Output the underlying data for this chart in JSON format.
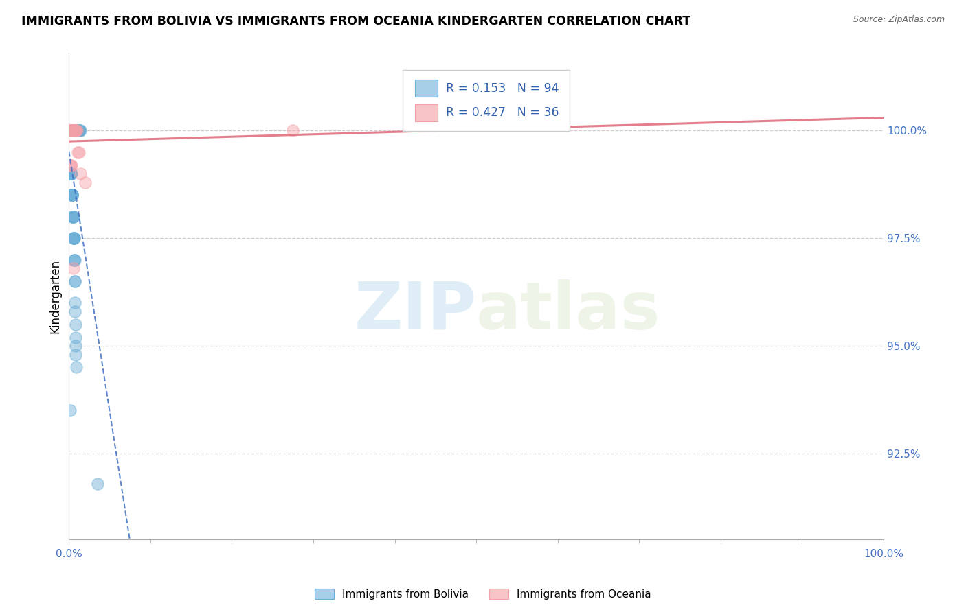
{
  "title": "IMMIGRANTS FROM BOLIVIA VS IMMIGRANTS FROM OCEANIA KINDERGARTEN CORRELATION CHART",
  "source": "Source: ZipAtlas.com",
  "ylabel": "Kindergarten",
  "ylabel_ticks": [
    "92.5%",
    "95.0%",
    "97.5%",
    "100.0%"
  ],
  "ylabel_values": [
    92.5,
    95.0,
    97.5,
    100.0
  ],
  "xlim": [
    0.0,
    100.0
  ],
  "ylim": [
    90.5,
    101.8
  ],
  "legend_label1": "Immigrants from Bolivia",
  "legend_label2": "Immigrants from Oceania",
  "bolivia_color": "#6baed6",
  "oceania_color": "#f4a0a8",
  "bolivia_color_light": "#a8cfe8",
  "oceania_color_light": "#f9c4c8",
  "watermark_zip": "ZIP",
  "watermark_atlas": "atlas",
  "bolivia_x": [
    0.05,
    0.08,
    0.1,
    0.1,
    0.12,
    0.13,
    0.15,
    0.15,
    0.18,
    0.2,
    0.22,
    0.25,
    0.28,
    0.3,
    0.32,
    0.35,
    0.38,
    0.4,
    0.42,
    0.45,
    0.48,
    0.5,
    0.52,
    0.55,
    0.58,
    0.6,
    0.62,
    0.65,
    0.68,
    0.7,
    0.72,
    0.75,
    0.78,
    0.8,
    0.82,
    0.85,
    0.88,
    0.9,
    0.92,
    0.95,
    0.98,
    1.0,
    1.05,
    1.1,
    1.15,
    1.2,
    1.25,
    1.3,
    1.35,
    1.4,
    0.05,
    0.07,
    0.09,
    0.11,
    0.13,
    0.15,
    0.17,
    0.19,
    0.21,
    0.23,
    0.25,
    0.27,
    0.29,
    0.31,
    0.33,
    0.35,
    0.37,
    0.39,
    0.41,
    0.43,
    0.45,
    0.47,
    0.49,
    0.51,
    0.53,
    0.55,
    0.57,
    0.59,
    0.61,
    0.63,
    0.65,
    0.67,
    0.69,
    0.71,
    0.73,
    0.75,
    0.77,
    0.79,
    0.81,
    0.83,
    0.85,
    0.87,
    3.5,
    0.1
  ],
  "bolivia_y": [
    100.0,
    100.0,
    100.0,
    100.0,
    100.0,
    100.0,
    100.0,
    100.0,
    100.0,
    100.0,
    100.0,
    100.0,
    100.0,
    100.0,
    100.0,
    100.0,
    100.0,
    100.0,
    100.0,
    100.0,
    100.0,
    100.0,
    100.0,
    100.0,
    100.0,
    100.0,
    100.0,
    100.0,
    100.0,
    100.0,
    100.0,
    100.0,
    100.0,
    100.0,
    100.0,
    100.0,
    100.0,
    100.0,
    100.0,
    100.0,
    100.0,
    100.0,
    100.0,
    100.0,
    100.0,
    100.0,
    100.0,
    100.0,
    100.0,
    100.0,
    99.0,
    99.0,
    99.0,
    99.0,
    99.0,
    99.0,
    99.0,
    99.0,
    99.0,
    99.0,
    99.0,
    99.0,
    98.5,
    98.5,
    98.5,
    98.5,
    98.5,
    98.5,
    98.5,
    98.5,
    98.0,
    98.0,
    98.0,
    98.0,
    98.0,
    97.5,
    97.5,
    97.5,
    97.5,
    97.5,
    97.0,
    97.0,
    97.0,
    96.5,
    96.5,
    96.0,
    95.8,
    95.5,
    95.2,
    95.0,
    94.8,
    94.5,
    91.8,
    93.5
  ],
  "oceania_x": [
    0.05,
    0.08,
    0.1,
    0.13,
    0.15,
    0.18,
    0.2,
    0.23,
    0.25,
    0.28,
    0.3,
    0.33,
    0.35,
    0.38,
    0.4,
    0.43,
    0.45,
    0.48,
    0.5,
    0.55,
    0.6,
    0.65,
    0.7,
    0.75,
    0.8,
    0.9,
    1.0,
    1.1,
    1.2,
    1.4,
    2.0,
    0.1,
    0.2,
    0.3,
    27.5,
    0.55
  ],
  "oceania_y": [
    100.0,
    100.0,
    100.0,
    100.0,
    100.0,
    100.0,
    100.0,
    100.0,
    100.0,
    100.0,
    100.0,
    100.0,
    100.0,
    100.0,
    100.0,
    100.0,
    100.0,
    100.0,
    100.0,
    100.0,
    100.0,
    100.0,
    100.0,
    100.0,
    100.0,
    100.0,
    100.0,
    99.5,
    99.5,
    99.0,
    98.8,
    99.2,
    99.2,
    99.2,
    100.0,
    96.8
  ]
}
